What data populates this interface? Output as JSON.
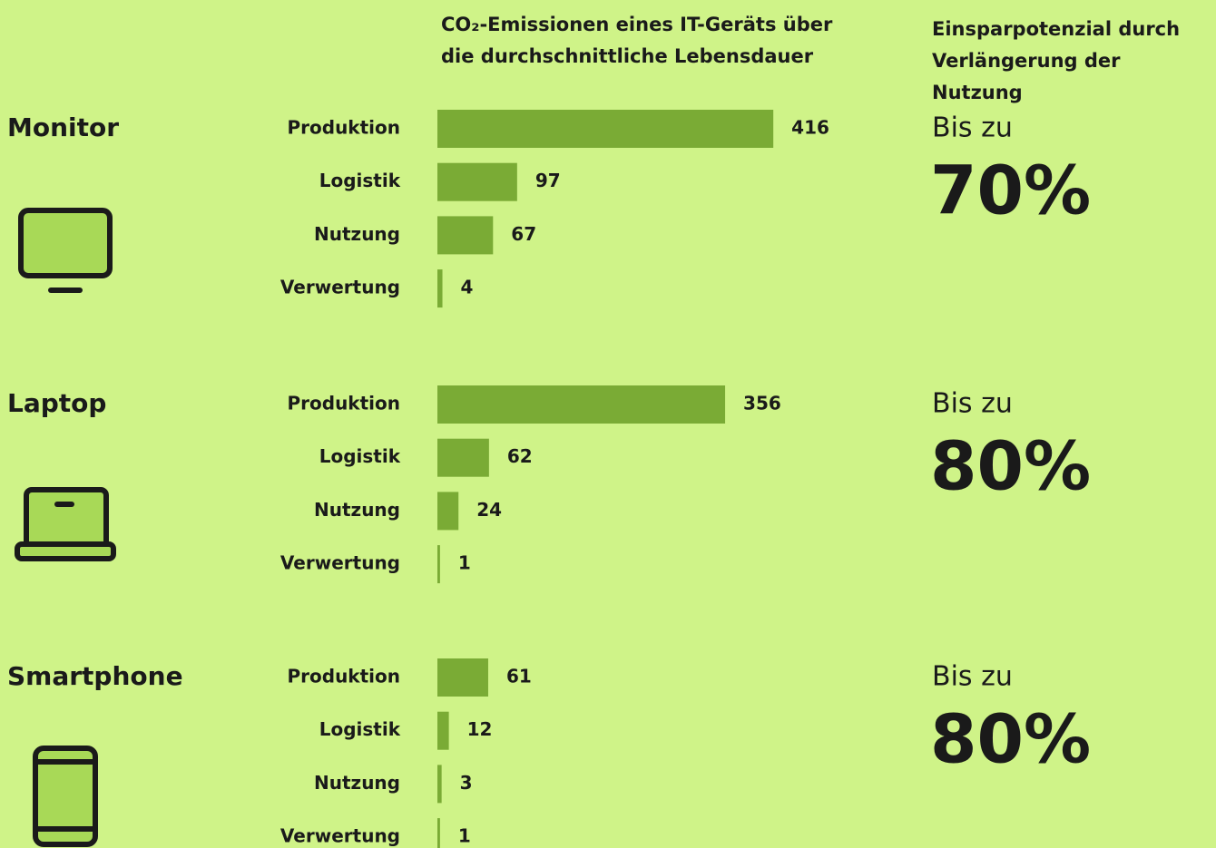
{
  "header": {
    "chart_title": "CO₂-Emissionen eines IT-Geräts über die durchschnittliche Lebensdauer",
    "savings_title": "Einsparpotenzial durch Verlängerung der Nutzung"
  },
  "chart_data": [
    {
      "type": "bar",
      "orientation": "horizontal",
      "title": "Monitor",
      "categories": [
        "Produktion",
        "Logistik",
        "Nutzung",
        "Verwertung"
      ],
      "values": [
        416,
        97,
        67,
        4
      ],
      "color": "#7aab35",
      "savings_label": "Bis zu",
      "savings": "70%"
    },
    {
      "type": "bar",
      "orientation": "horizontal",
      "title": "Laptop",
      "categories": [
        "Produktion",
        "Logistik",
        "Nutzung",
        "Verwertung"
      ],
      "values": [
        356,
        62,
        24,
        1
      ],
      "color": "#7aab35",
      "savings_label": "Bis zu",
      "savings": "80%"
    },
    {
      "type": "bar",
      "orientation": "horizontal",
      "title": "Smartphone",
      "categories": [
        "Produktion",
        "Logistik",
        "Nutzung",
        "Verwertung"
      ],
      "values": [
        61,
        12,
        3,
        1
      ],
      "color": "#7aab35",
      "savings_label": "Bis zu",
      "savings": "80%"
    }
  ]
}
